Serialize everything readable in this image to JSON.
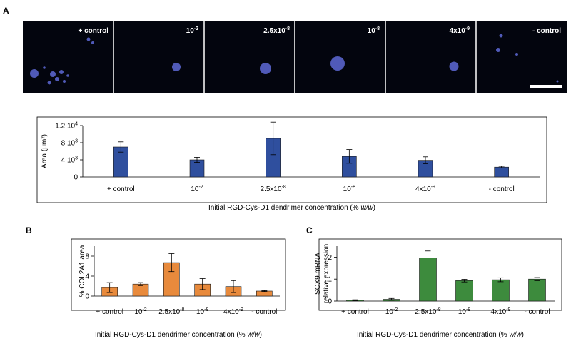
{
  "panel_a": {
    "letter": "A",
    "micrographs": [
      {
        "label_main": "+ control",
        "label_sup": ""
      },
      {
        "label_main": "10",
        "label_sup": "-2"
      },
      {
        "label_main": "2.5x10",
        "label_sup": "-8"
      },
      {
        "label_main": "10",
        "label_sup": "-8"
      },
      {
        "label_main": "4x10",
        "label_sup": "-9"
      },
      {
        "label_main": "- control",
        "label_sup": ""
      }
    ]
  },
  "colors": {
    "bar_a": "#2f4f9e",
    "bar_b": "#e88a3c",
    "bar_c": "#3d8b3d",
    "micro_bg": "#03050e",
    "cells": "#5e6ad6"
  },
  "chart_data": [
    {
      "id": "A",
      "type": "bar",
      "categories": [
        "+ control",
        "10-2",
        "2.5x10-8",
        "10-8",
        "4x10-9",
        "- control"
      ],
      "values": [
        7000,
        4000,
        9000,
        4800,
        3900,
        2300
      ],
      "errors": [
        1200,
        600,
        3800,
        1600,
        800,
        200
      ],
      "ylim": [
        0,
        12000
      ],
      "yticks": [
        0,
        4000,
        8000,
        12000
      ],
      "ytick_labels": [
        {
          "main": "0",
          "sup": ""
        },
        {
          "main": "4 10",
          "sup": "3"
        },
        {
          "main": "8 10",
          "sup": "3"
        },
        {
          "main": "1.2 10",
          "sup": "4"
        }
      ],
      "ylabel": "Area (μm²)",
      "xlabel": "Initial RGD-Cys-D1 dendrimer concentration (% w/w)"
    },
    {
      "id": "B",
      "letter": "B",
      "type": "bar",
      "categories": [
        "+ control",
        "10-2",
        "2.5x10-8",
        "10-8",
        "4x10-9",
        "- control"
      ],
      "values": [
        1.7,
        2.4,
        6.7,
        2.4,
        1.9,
        1.0
      ],
      "errors": [
        1.0,
        0.3,
        1.8,
        1.1,
        1.2,
        0.1
      ],
      "ylim": [
        0,
        10
      ],
      "yticks": [
        0,
        4,
        8
      ],
      "ylabel": "% COL2A1 area",
      "xlabel": "Initial RGD-Cys-D1 dendrimer concentration (% w/w)"
    },
    {
      "id": "C",
      "letter": "C",
      "type": "bar",
      "categories": [
        "+ control",
        "10-2",
        "2.5x10-8",
        "10-8",
        "4x10-9",
        "- control"
      ],
      "values": [
        0.04,
        0.08,
        1.96,
        0.93,
        0.97,
        1.0
      ],
      "errors": [
        0.02,
        0.04,
        0.32,
        0.06,
        0.09,
        0.07
      ],
      "ylim": [
        0,
        2.5
      ],
      "yticks": [
        0,
        1,
        2
      ],
      "ylabel_lines": [
        "SOX9 mRNA",
        "relative expression"
      ],
      "xlabel": "Initial RGD-Cys-D1 dendrimer concentration (% w/w)"
    }
  ]
}
